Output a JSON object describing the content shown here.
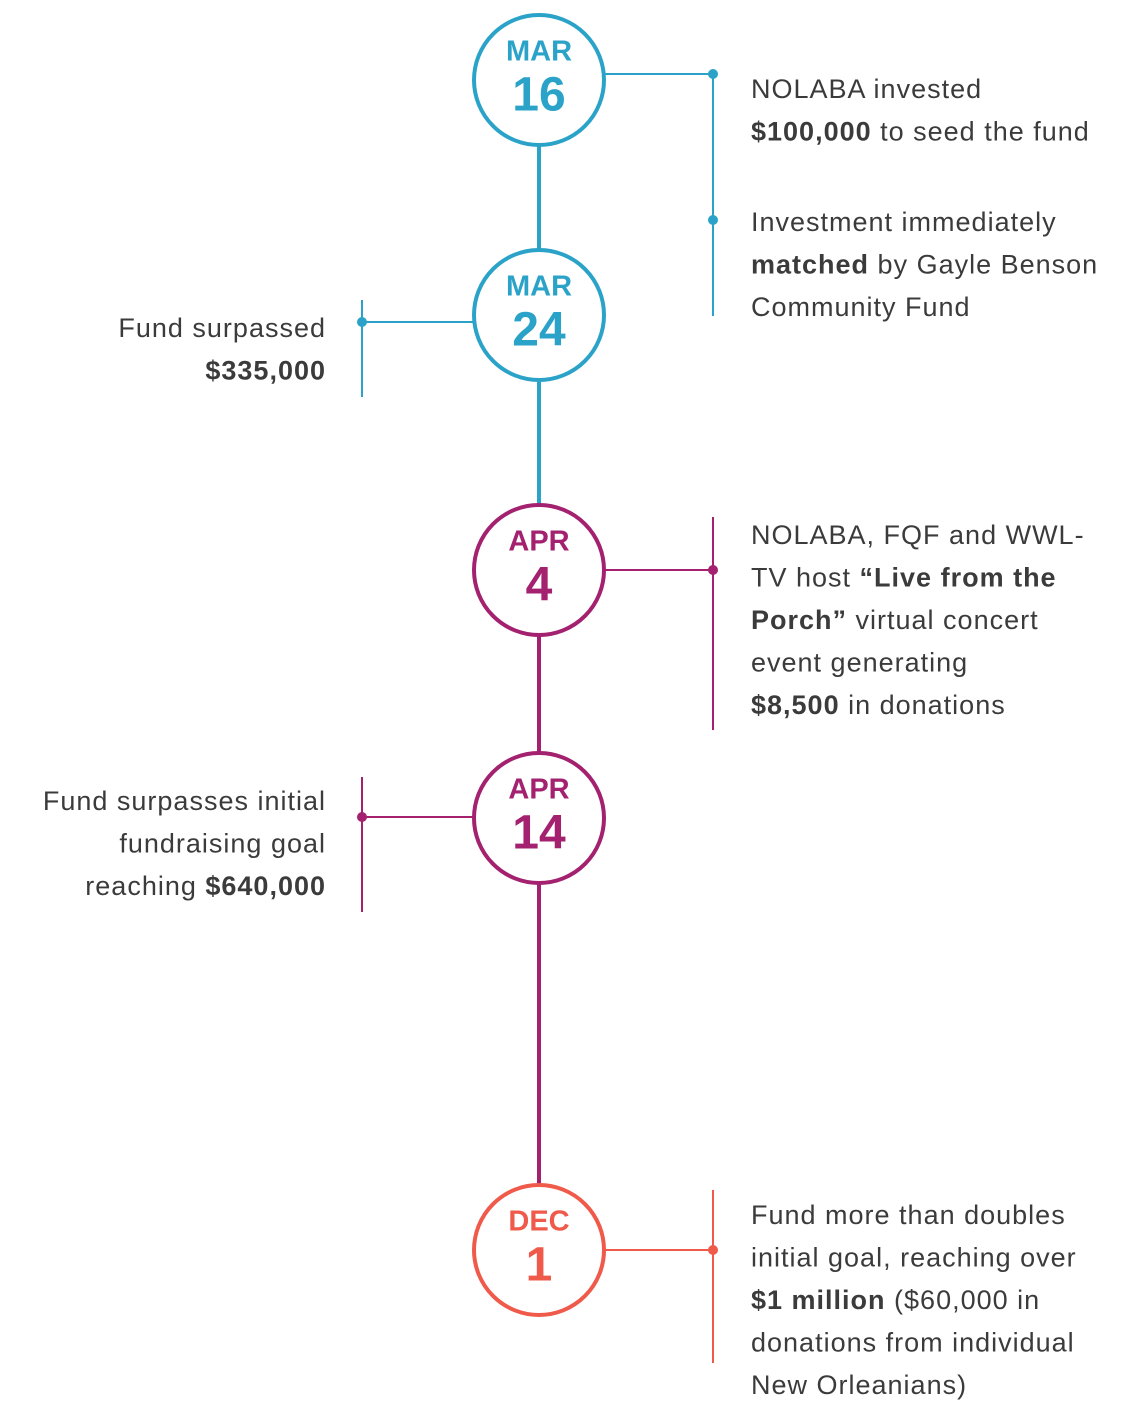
{
  "events": [
    {
      "month": "MAR",
      "day": "16",
      "color": "#2ba3c9",
      "notes": [
        [
          [
            {
              "text": "NOLABA invested"
            }
          ],
          [
            {
              "text": "$100,000",
              "bold": true
            },
            {
              "text": " to seed the fund"
            }
          ]
        ],
        [
          [
            {
              "text": "Investment immediately"
            }
          ],
          [
            {
              "text": "matched",
              "bold": true
            },
            {
              "text": " by Gayle Benson"
            }
          ],
          [
            {
              "text": "Community Fund"
            }
          ]
        ]
      ]
    },
    {
      "month": "MAR",
      "day": "24",
      "color": "#2ba3c9",
      "notes": [
        [
          [
            {
              "text": "Fund surpassed"
            }
          ],
          [
            {
              "text": "$335,000",
              "bold": true
            }
          ]
        ]
      ]
    },
    {
      "month": "APR",
      "day": "4",
      "color": "#a3216f",
      "notes": [
        [
          [
            {
              "text": "NOLABA, FQF and WWL-"
            }
          ],
          [
            {
              "text": "TV host "
            },
            {
              "text": "“Live from the",
              "bold": true
            }
          ],
          [
            {
              "text": "Porch”",
              "bold": true
            },
            {
              "text": " virtual concert"
            }
          ],
          [
            {
              "text": "event generating"
            }
          ],
          [
            {
              "text": "$8,500",
              "bold": true
            },
            {
              "text": " in donations"
            }
          ]
        ]
      ]
    },
    {
      "month": "APR",
      "day": "14",
      "color": "#a3216f",
      "notes": [
        [
          [
            {
              "text": "Fund surpasses initial"
            }
          ],
          [
            {
              "text": "fundraising goal"
            }
          ],
          [
            {
              "text": "reaching "
            },
            {
              "text": "$640,000",
              "bold": true
            }
          ]
        ]
      ]
    },
    {
      "month": "DEC",
      "day": "1",
      "color": "#ef5a4a",
      "notes": [
        [
          [
            {
              "text": "Fund more than doubles"
            }
          ],
          [
            {
              "text": "initial goal, reaching over"
            }
          ],
          [
            {
              "text": "$1 million",
              "bold": true
            },
            {
              "text": " ($60,000 in"
            }
          ],
          [
            {
              "text": "donations from individual"
            }
          ],
          [
            {
              "text": "New Orleanians)"
            }
          ]
        ]
      ]
    }
  ]
}
